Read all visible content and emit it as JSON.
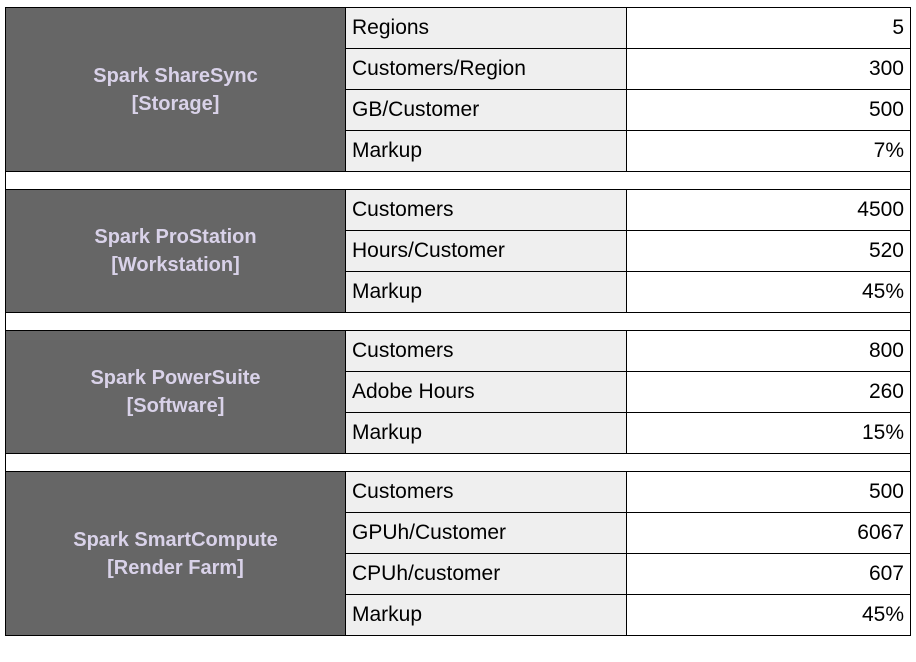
{
  "groups": [
    {
      "name": "Spark ShareSync",
      "category": "[Storage]",
      "rows": [
        {
          "label": "Regions",
          "value": "5"
        },
        {
          "label": "Customers/Region",
          "value": "300"
        },
        {
          "label": "GB/Customer",
          "value": "500"
        },
        {
          "label": "Markup",
          "value": "7%"
        }
      ]
    },
    {
      "name": "Spark ProStation",
      "category": "[Workstation]",
      "rows": [
        {
          "label": "Customers",
          "value": "4500"
        },
        {
          "label": "Hours/Customer",
          "value": "520"
        },
        {
          "label": "Markup",
          "value": "45%"
        }
      ]
    },
    {
      "name": "Spark PowerSuite",
      "category": "[Software]",
      "rows": [
        {
          "label": "Customers",
          "value": "800"
        },
        {
          "label": "Adobe Hours",
          "value": "260"
        },
        {
          "label": "Markup",
          "value": "15%"
        }
      ]
    },
    {
      "name": "Spark SmartCompute",
      "category": "[Render Farm]",
      "rows": [
        {
          "label": "Customers",
          "value": "500"
        },
        {
          "label": "GPUh/Customer",
          "value": "6067"
        },
        {
          "label": "CPUh/customer",
          "value": "607"
        },
        {
          "label": "Markup",
          "value": "45%"
        }
      ]
    }
  ],
  "colors": {
    "product_bg": "#666666",
    "product_text": "#d9d2e9",
    "label_bg": "#efefef",
    "value_bg": "#ffffff",
    "border": "#000000"
  }
}
